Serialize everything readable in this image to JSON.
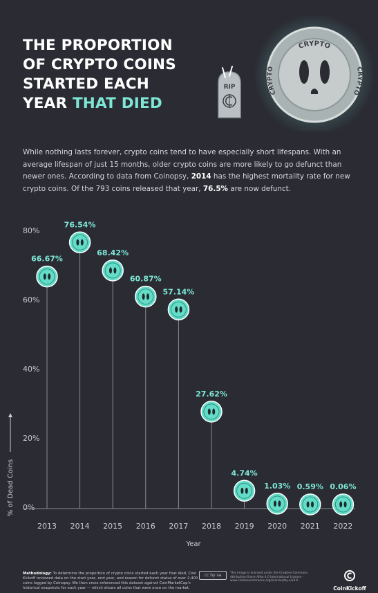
{
  "title": {
    "line1": "THE PROPORTION",
    "line2": "OF CRYPTO COINS",
    "line3": "STARTED EACH",
    "line4_prefix": "YEAR ",
    "line4_highlight": "THAT DIED"
  },
  "illustration": {
    "tombstone_text": "RIP",
    "coin_text_top": "CRYPTO",
    "coin_text_left": "CRYPTO",
    "coin_text_right": "CRYPTO"
  },
  "intro": {
    "part1": "While nothing lasts forever, crypto coins tend to have especially short lifespans. With an average lifespan of just 15 months, older crypto coins are more likely to go defunct than newer ones. According to data from Coinopsy, ",
    "bold1": "2014",
    "part2": " has the highest mortality rate for new crypto coins. Of the 793 coins released that year, ",
    "bold2": "76.5%",
    "part3": " are now defunct."
  },
  "chart_data": {
    "type": "scatter",
    "categories": [
      "2013",
      "2014",
      "2015",
      "2016",
      "2017",
      "2018",
      "2019",
      "2020",
      "2021",
      "2022"
    ],
    "values": [
      66.67,
      76.54,
      68.42,
      60.87,
      57.14,
      27.62,
      4.74,
      1.03,
      0.59,
      0.06
    ],
    "value_labels": [
      "66.67%",
      "76.54%",
      "68.42%",
      "60.87%",
      "57.14%",
      "27.62%",
      "4.74%",
      "1.03%",
      "0.59%",
      "0.06%"
    ],
    "xlabel": "Year",
    "ylabel": "% of Dead Coins",
    "ylim": [
      0,
      80
    ],
    "yticks": [
      0,
      20,
      40,
      60,
      80
    ],
    "ytick_labels": [
      "0%",
      "20%",
      "40%",
      "60%",
      "80%"
    ],
    "grid": false,
    "marker": "ghost-coin"
  },
  "footer": {
    "methodology_label": "Methodology:",
    "methodology_text": "To determine the proportion of crypto coins started each year that died, Coin Kickoff reviewed data on the start year, end year, and reason for defunct status of over 2,400 coins logged by Coinopsy. We then cross-referenced this dataset against CoinMarketCap's historical snapshots for each year — which shows all coins that were once on the market.",
    "license_text": "This image is licensed under the Creative Commons Attribution-Share Alike 4.0 International License - www.creativecommons.org/licenses/by-sa/4.0",
    "cc_label": "cc by sa",
    "brand": "CoinKickoff"
  },
  "colors": {
    "background": "#2a2b33",
    "accent": "#7fe6d6",
    "marker_fill": "#63dcc8",
    "stem": "#8a8e97"
  }
}
